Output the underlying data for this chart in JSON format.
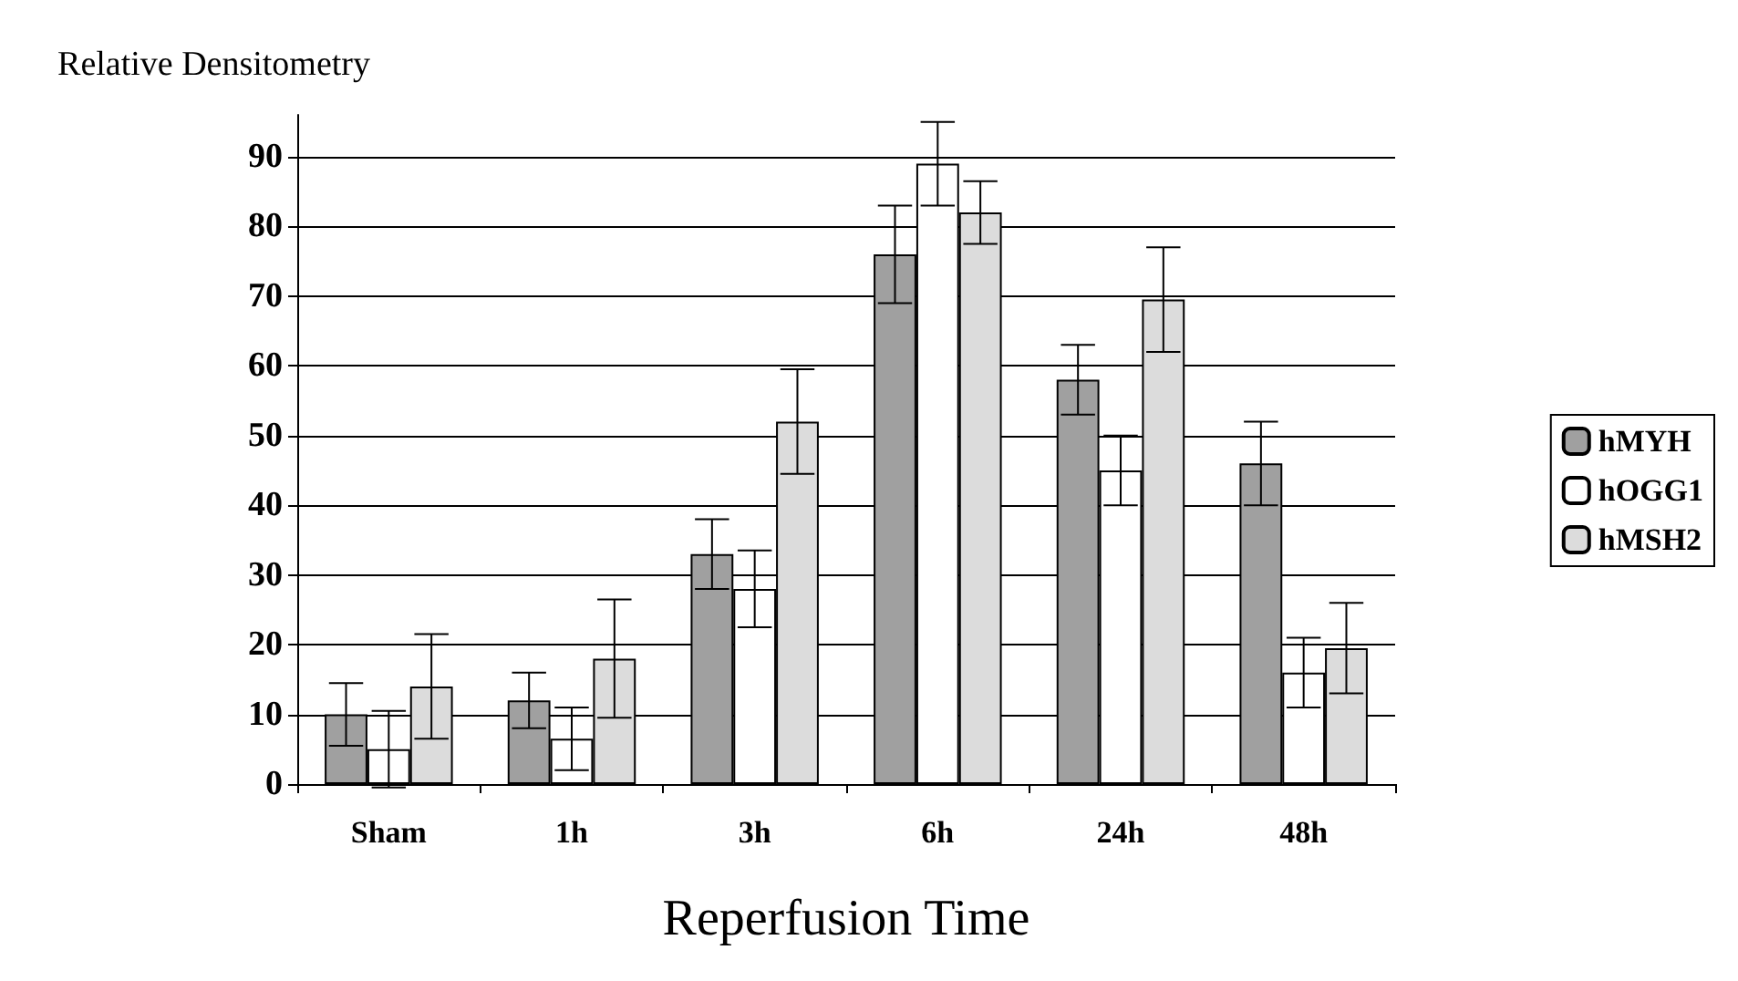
{
  "chart_data": {
    "type": "bar",
    "ylabel": "Relative Densitometry",
    "xlabel": "Reperfusion Time",
    "categories": [
      "Sham",
      "1h",
      "3h",
      "6h",
      "24h",
      "48h"
    ],
    "series": [
      {
        "name": "hMYH",
        "color": "#a0a0a0",
        "values": [
          10,
          12,
          33,
          76,
          58,
          46
        ],
        "errors": [
          4.5,
          4,
          5,
          7,
          5,
          6
        ]
      },
      {
        "name": "hOGG1",
        "color": "#ffffff",
        "values": [
          5,
          6.5,
          28,
          89,
          45,
          16
        ],
        "errors": [
          5.5,
          4.5,
          5.5,
          6,
          5,
          5
        ]
      },
      {
        "name": "hMSH2",
        "color": "#dcdcdc",
        "values": [
          14,
          18,
          52,
          82,
          69.5,
          19.5
        ],
        "errors": [
          7.5,
          8.5,
          7.5,
          4.5,
          7.5,
          6.5
        ]
      }
    ],
    "ylim": [
      0,
      96
    ],
    "yticks": [
      0,
      10,
      20,
      30,
      40,
      50,
      60,
      70,
      80,
      90
    ],
    "grid": "y",
    "legend": "right"
  }
}
